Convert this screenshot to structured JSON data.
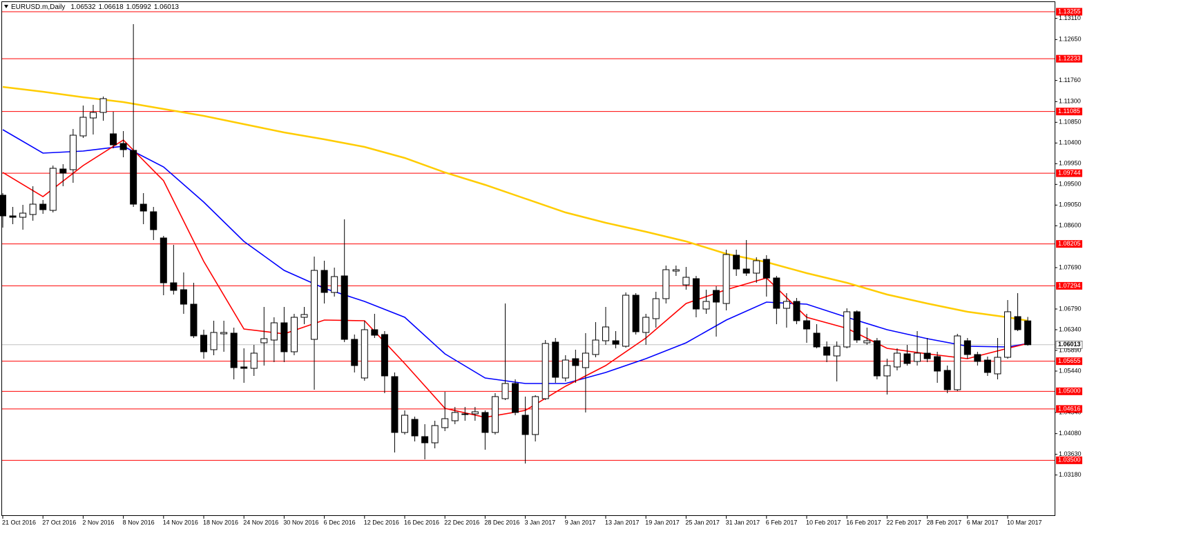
{
  "chart_data": {
    "type": "candlestick",
    "title": "EURUSD.m,Daily",
    "categories": [
      "21 Oct 2016",
      null,
      null,
      null,
      "27 Oct 2016",
      null,
      null,
      null,
      "2 Nov 2016",
      null,
      null,
      null,
      "8 Nov 2016",
      null,
      null,
      null,
      "14 Nov 2016",
      null,
      null,
      null,
      "18 Nov 2016",
      null,
      null,
      null,
      "24 Nov 2016",
      null,
      null,
      null,
      "30 Nov 2016",
      null,
      null,
      null,
      "6 Dec 2016",
      null,
      null,
      null,
      "12 Dec 2016",
      null,
      null,
      null,
      "16 Dec 2016",
      null,
      null,
      null,
      "22 Dec 2016",
      null,
      null,
      null,
      "28 Dec 2016",
      null,
      null,
      null,
      "3 Jan 2017",
      null,
      null,
      null,
      "9 Jan 2017",
      null,
      null,
      null,
      "13 Jan 2017",
      null,
      null,
      null,
      "19 Jan 2017",
      null,
      null,
      null,
      "25 Jan 2017",
      null,
      null,
      null,
      "31 Jan 2017",
      null,
      null,
      null,
      "6 Feb 2017",
      null,
      null,
      null,
      "10 Feb 2017",
      null,
      null,
      null,
      "16 Feb 2017",
      null,
      null,
      null,
      "22 Feb 2017",
      null,
      null,
      null,
      "28 Feb 2017",
      null,
      null,
      null,
      "6 Mar 2017",
      null,
      null,
      null,
      "10 Mar 2017",
      null,
      null
    ],
    "open": [
      1.09265,
      1.08815,
      1.08785,
      1.08845,
      1.0907,
      1.08935,
      1.09835,
      1.0982,
      1.10555,
      1.10945,
      1.11065,
      1.106,
      1.1039,
      1.1024,
      1.0907,
      1.08905,
      1.08335,
      1.0736,
      1.0721,
      1.06895,
      1.0622,
      1.05905,
      1.0625,
      1.06265,
      1.0553,
      1.055,
      1.06055,
      1.06115,
      1.0649,
      1.0586,
      1.0661,
      1.0613,
      1.0763,
      1.0715,
      1.0751,
      1.0613,
      1.0529,
      1.0634,
      1.06235,
      1.0532,
      1.04105,
      1.0439,
      1.04015,
      1.0388,
      1.0421,
      1.0436,
      1.04495,
      1.0451,
      1.0454,
      1.04105,
      1.0484,
      1.0517,
      1.0448,
      1.0406,
      1.0484,
      1.0607,
      1.0529,
      1.0571,
      1.05515,
      1.058,
      1.061,
      1.061,
      1.0598,
      1.0709,
      1.0628,
      1.0658,
      1.07015,
      1.07615,
      1.07315,
      1.0745,
      1.0679,
      1.07195,
      1.0691,
      1.0796,
      1.0766,
      1.0757,
      1.0787,
      1.07465,
      1.06805,
      1.06955,
      1.06535,
      1.06265,
      1.05965,
      1.0577,
      1.05965,
      1.0673,
      1.06055,
      1.061,
      1.05335,
      1.0553,
      1.05815,
      1.0565,
      1.0583,
      1.05755,
      1.05455,
      1.05035,
      1.061,
      1.058,
      1.0568,
      1.0538,
      1.0574,
      1.06625,
      1.06532
    ],
    "high": [
      1.0931,
      1.0901,
      1.09055,
      1.0946,
      1.0916,
      1.0991,
      1.0994,
      1.10705,
      1.11215,
      1.1123,
      1.1141,
      1.1108,
      1.1066,
      1.12985,
      1.0931,
      1.0901,
      1.0838,
      1.08185,
      1.07585,
      1.0736,
      1.0634,
      1.06535,
      1.06535,
      1.06385,
      1.05935,
      1.0601,
      1.06835,
      1.0661,
      1.06835,
      1.06685,
      1.06835,
      1.0793,
      1.0784,
      1.0769,
      1.0874,
      1.06235,
      1.06535,
      1.06685,
      1.0631,
      1.0541,
      1.04585,
      1.0445,
      1.04285,
      1.0436,
      1.0499,
      1.0466,
      1.0466,
      1.0466,
      1.04585,
      1.0496,
      1.0691,
      1.0526,
      1.04885,
      1.04915,
      1.06115,
      1.0616,
      1.05785,
      1.05905,
      1.06265,
      1.06505,
      1.06835,
      1.0631,
      1.0715,
      1.07135,
      1.06685,
      1.07165,
      1.07735,
      1.07735,
      1.07705,
      1.0751,
      1.0721,
      1.07285,
      1.0808,
      1.0808,
      1.0829,
      1.07915,
      1.0796,
      1.0751,
      1.07135,
      1.0703,
      1.06685,
      1.0646,
      1.06085,
      1.06085,
      1.06805,
      1.0676,
      1.06385,
      1.0616,
      1.0571,
      1.05935,
      1.0601,
      1.0631,
      1.0616,
      1.0586,
      1.0556,
      1.0625,
      1.0616,
      1.0586,
      1.05755,
      1.0616,
      1.06985,
      1.07135,
      1.06618
    ],
    "low": [
      1.0856,
      1.08635,
      1.08515,
      1.0871,
      1.0886,
      1.0889,
      1.0946,
      1.09535,
      1.1051,
      1.10585,
      1.10885,
      1.10285,
      1.1009,
      1.0901,
      1.08635,
      1.0829,
      1.0709,
      1.07105,
      1.06685,
      1.0616,
      1.0571,
      1.05785,
      1.0586,
      1.0526,
      1.05185,
      1.05335,
      1.0556,
      1.05635,
      1.05635,
      1.05785,
      1.0646,
      1.05035,
      1.0691,
      1.0706,
      1.0607,
      1.0541,
      1.0523,
      1.0616,
      1.0496,
      1.0367,
      1.0406,
      1.0391,
      1.0352,
      1.0376,
      1.04135,
      1.04285,
      1.0436,
      1.0436,
      1.0373,
      1.0406,
      1.0481,
      1.0448,
      1.0343,
      1.0391,
      1.0481,
      1.05185,
      1.05215,
      1.05185,
      1.0454,
      1.0574,
      1.0601,
      1.05935,
      1.0595,
      1.06235,
      1.0601,
      1.06385,
      1.0691,
      1.0751,
      1.0721,
      1.0661,
      1.06685,
      1.0619,
      1.0676,
      1.0751,
      1.0751,
      1.0736,
      1.0706,
      1.0646,
      1.06385,
      1.0646,
      1.06055,
      1.05935,
      1.05635,
      1.05215,
      1.05935,
      1.06055,
      1.0601,
      1.0526,
      1.0493,
      1.05455,
      1.0556,
      1.0556,
      1.05635,
      1.05185,
      1.0496,
      1.05005,
      1.0571,
      1.0556,
      1.05335,
      1.0526,
      1.0571,
      1.0631,
      1.05992
    ],
    "close": [
      1.08815,
      1.08785,
      1.08875,
      1.0907,
      1.0895,
      1.0985,
      1.09745,
      1.1057,
      1.1096,
      1.11065,
      1.11365,
      1.1036,
      1.10255,
      1.0907,
      1.0892,
      1.08515,
      1.0736,
      1.07195,
      1.06895,
      1.06205,
      1.0586,
      1.0628,
      1.0628,
      1.05515,
      1.055,
      1.0583,
      1.06145,
      1.0649,
      1.0586,
      1.0661,
      1.0667,
      1.0763,
      1.0715,
      1.07495,
      1.0613,
      1.0556,
      1.0634,
      1.0622,
      1.05335,
      1.04105,
      1.0448,
      1.0403,
      1.0388,
      1.04255,
      1.04405,
      1.0454,
      1.0451,
      1.04555,
      1.04105,
      1.04885,
      1.0517,
      1.0454,
      1.0406,
      1.04885,
      1.0604,
      1.05305,
      1.0568,
      1.0556,
      1.0583,
      1.06115,
      1.064,
      1.06025,
      1.0709,
      1.06295,
      1.0661,
      1.07015,
      1.07645,
      1.07645,
      1.0748,
      1.0679,
      1.06955,
      1.0694,
      1.07975,
      1.0766,
      1.0757,
      1.0784,
      1.07465,
      1.06805,
      1.06955,
      1.06535,
      1.06355,
      1.05965,
      1.05785,
      1.0598,
      1.0673,
      1.06115,
      1.061,
      1.05335,
      1.0556,
      1.0583,
      1.05605,
      1.0583,
      1.0571,
      1.0544,
      1.05035,
      1.06205,
      1.058,
      1.0565,
      1.0541,
      1.0574,
      1.0673,
      1.0634,
      1.06013
    ],
    "lines": [
      {
        "color": "#ffcc00",
        "x": [
          0,
          4,
          8,
          12,
          16,
          20,
          24,
          28,
          32,
          36,
          40,
          44,
          48,
          52,
          56,
          60,
          64,
          68,
          72,
          76,
          80,
          84,
          88,
          92,
          96,
          100,
          102
        ],
        "values": [
          1.1162,
          1.11515,
          1.11395,
          1.1129,
          1.1114,
          1.1099,
          1.1081,
          1.1063,
          1.1048,
          1.10315,
          1.10075,
          1.0976,
          1.0949,
          1.0919,
          1.0889,
          1.08665,
          1.0847,
          1.0826,
          1.0799,
          1.0781,
          1.0757,
          1.0736,
          1.07105,
          1.0691,
          1.0673,
          1.0661,
          1.06535
        ]
      },
      {
        "color": "#0000ff",
        "x": [
          0,
          4,
          8,
          12,
          16,
          20,
          24,
          28,
          32,
          36,
          40,
          44,
          48,
          52,
          56,
          60,
          64,
          68,
          72,
          76,
          80,
          84,
          88,
          92,
          96,
          100,
          102
        ],
        "values": [
          1.1069,
          1.1018,
          1.10225,
          1.1033,
          1.0988,
          1.09115,
          1.0826,
          1.0763,
          1.0724,
          1.06955,
          1.0661,
          1.05815,
          1.0529,
          1.0517,
          1.0517,
          1.0541,
          1.0571,
          1.06055,
          1.0655,
          1.0694,
          1.06895,
          1.0661,
          1.0634,
          1.06145,
          1.0598,
          1.05965,
          1.0604
        ]
      },
      {
        "color": "#ff0000",
        "x": [
          0,
          4,
          8,
          12,
          16,
          20,
          24,
          28,
          32,
          36,
          40,
          44,
          48,
          52,
          56,
          60,
          64,
          68,
          72,
          76,
          80,
          84,
          88,
          92,
          96,
          100,
          102
        ],
        "values": [
          1.0976,
          1.09235,
          1.0991,
          1.10465,
          1.0958,
          1.07825,
          1.06355,
          1.0625,
          1.0655,
          1.06535,
          1.05605,
          1.0463,
          1.04435,
          1.04585,
          1.0511,
          1.0556,
          1.0616,
          1.0691,
          1.0721,
          1.07465,
          1.0661,
          1.0637,
          1.05935,
          1.05815,
          1.0571,
          1.05935,
          1.0604
        ]
      }
    ],
    "levels": [
      1.13255,
      1.12233,
      1.11085,
      1.09744,
      1.08205,
      1.07294,
      1.05655,
      {
        "value": 1.05,
        "label": "1.05000"
      },
      1.04616,
      {
        "value": 1.035,
        "label": "1.03500"
      }
    ],
    "level_color": "#ff0000",
    "ylim": [
      1.0229,
      1.13465
    ],
    "yticks": [
      {
        "value": 1.1311,
        "label": "1.13110"
      },
      {
        "value": 1.1265,
        "label": "1.12650"
      },
      {
        "value": 1.1176,
        "label": "1.11760"
      },
      {
        "value": 1.113,
        "label": "1.11300"
      },
      {
        "value": 1.1085,
        "label": "1.10850"
      },
      {
        "value": 1.104,
        "label": "1.10400"
      },
      {
        "value": 1.0995,
        "label": "1.09950"
      },
      {
        "value": 1.095,
        "label": "1.09500"
      },
      {
        "value": 1.0905,
        "label": "1.09050"
      },
      {
        "value": 1.086,
        "label": "1.08600"
      },
      {
        "value": 1.0769,
        "label": "1.07690"
      },
      {
        "value": 1.0679,
        "label": "1.06790"
      },
      {
        "value": 1.0634,
        "label": "1.06340"
      },
      {
        "value": 1.0589,
        "label": "1.05890"
      },
      {
        "value": 1.0544,
        "label": "1.05440"
      },
      {
        "value": 1.0454,
        "label": "1.04540"
      },
      {
        "value": 1.0408,
        "label": "1.04080"
      },
      {
        "value": 1.0363,
        "label": "1.03630"
      },
      {
        "value": 1.0318,
        "label": "1.03180"
      }
    ]
  }
}
